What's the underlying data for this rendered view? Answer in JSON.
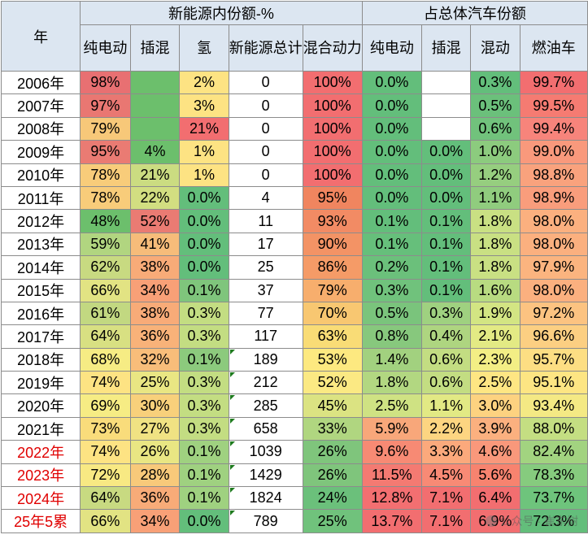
{
  "header": {
    "year": "年",
    "group_nev": "新能源内份额-%",
    "group_total": "占总体汽车份额",
    "cols": [
      "纯电动",
      "插混",
      "氢",
      "新能源总计",
      "混合动力",
      "纯电动",
      "插混",
      "混动",
      "燃油车"
    ]
  },
  "rows": [
    {
      "year": "2006年",
      "cells": [
        "98%",
        "",
        "2%",
        "0",
        "100%",
        "0.0%",
        "",
        "0.3%",
        "99.7%"
      ]
    },
    {
      "year": "2007年",
      "cells": [
        "97%",
        "",
        "3%",
        "0",
        "100%",
        "0.0%",
        "",
        "0.5%",
        "99.5%"
      ]
    },
    {
      "year": "2008年",
      "cells": [
        "79%",
        "",
        "21%",
        "0",
        "100%",
        "0.0%",
        "",
        "0.6%",
        "99.4%"
      ]
    },
    {
      "year": "2009年",
      "cells": [
        "95%",
        "4%",
        "1%",
        "0",
        "100%",
        "0.0%",
        "0.0%",
        "1.0%",
        "99.0%"
      ]
    },
    {
      "year": "2010年",
      "cells": [
        "78%",
        "21%",
        "1%",
        "0",
        "100%",
        "0.0%",
        "0.0%",
        "1.2%",
        "98.8%"
      ]
    },
    {
      "year": "2011年",
      "cells": [
        "78%",
        "22%",
        "0.0%",
        "4",
        "95%",
        "0.0%",
        "0.0%",
        "1.1%",
        "98.9%"
      ]
    },
    {
      "year": "2012年",
      "cells": [
        "48%",
        "52%",
        "0.0%",
        "11",
        "93%",
        "0.1%",
        "0.1%",
        "1.8%",
        "98.0%"
      ]
    },
    {
      "year": "2013年",
      "cells": [
        "59%",
        "41%",
        "0.0%",
        "17",
        "90%",
        "0.1%",
        "0.1%",
        "1.8%",
        "98.0%"
      ]
    },
    {
      "year": "2014年",
      "cells": [
        "62%",
        "38%",
        "0.0%",
        "25",
        "86%",
        "0.2%",
        "0.1%",
        "1.8%",
        "97.9%"
      ]
    },
    {
      "year": "2015年",
      "cells": [
        "66%",
        "34%",
        "0.1%",
        "37",
        "79%",
        "0.3%",
        "0.1%",
        "1.6%",
        "98.0%"
      ]
    },
    {
      "year": "2016年",
      "cells": [
        "61%",
        "38%",
        "0.3%",
        "77",
        "70%",
        "0.5%",
        "0.3%",
        "1.9%",
        "97.2%"
      ]
    },
    {
      "year": "2017年",
      "cells": [
        "64%",
        "36%",
        "0.3%",
        "117",
        "63%",
        "0.8%",
        "0.4%",
        "2.1%",
        "96.6%"
      ]
    },
    {
      "year": "2018年",
      "cells": [
        "68%",
        "32%",
        "0.1%",
        "189",
        "53%",
        "1.4%",
        "0.6%",
        "2.3%",
        "95.7%"
      ]
    },
    {
      "year": "2019年",
      "cells": [
        "74%",
        "25%",
        "0.3%",
        "212",
        "52%",
        "1.8%",
        "0.6%",
        "2.5%",
        "95.1%"
      ]
    },
    {
      "year": "2020年",
      "cells": [
        "69%",
        "30%",
        "0.3%",
        "285",
        "45%",
        "2.5%",
        "1.1%",
        "3.0%",
        "93.4%"
      ]
    },
    {
      "year": "2021年",
      "cells": [
        "73%",
        "27%",
        "0.3%",
        "658",
        "33%",
        "5.9%",
        "2.2%",
        "3.9%",
        "88.0%"
      ]
    },
    {
      "year": "2022年",
      "cells": [
        "74%",
        "26%",
        "0.1%",
        "1039",
        "26%",
        "9.6%",
        "3.3%",
        "4.6%",
        "82.4%"
      ],
      "red": true
    },
    {
      "year": "2023年",
      "cells": [
        "72%",
        "28%",
        "0.1%",
        "1429",
        "26%",
        "11.5%",
        "4.5%",
        "5.6%",
        "78.3%"
      ],
      "red": true
    },
    {
      "year": "2024年",
      "cells": [
        "64%",
        "36%",
        "0.1%",
        "1824",
        "24%",
        "12.8%",
        "7.1%",
        "6.4%",
        "73.7%"
      ],
      "red": true
    },
    {
      "year": "25年5累",
      "cells": [
        "66%",
        "34%",
        "0.0%",
        "789",
        "25%",
        "13.7%",
        "7.1%",
        "6.9%",
        "72.3%"
      ],
      "red": true
    }
  ],
  "colors": [
    [
      "#e87072",
      "#6cbf6c",
      "#fde383",
      "#ffffff",
      "#f26e70",
      "#63be7b",
      "#ffffff",
      "#63be7b",
      "#f26e70"
    ],
    [
      "#e97772",
      "#6cbf6c",
      "#fde383",
      "#ffffff",
      "#f26e70",
      "#63be7b",
      "#ffffff",
      "#6bc07b",
      "#f57b72"
    ],
    [
      "#f7c879",
      "#6cbf6c",
      "#f26e70",
      "#ffffff",
      "#f26e70",
      "#63be7b",
      "#ffffff",
      "#71c27c",
      "#f7847b"
    ],
    [
      "#ea7b73",
      "#6cbf6c",
      "#fde383",
      "#ffffff",
      "#f26e70",
      "#63be7b",
      "#63be7b",
      "#8ccb7e",
      "#f9997c"
    ],
    [
      "#f8cc7a",
      "#cbdc81",
      "#fde383",
      "#ffffff",
      "#f26e70",
      "#63be7b",
      "#63be7b",
      "#96ce7f",
      "#f9a27d"
    ],
    [
      "#f8cc7a",
      "#d2de81",
      "#63be7b",
      "#ffffff",
      "#f0855f",
      "#63be7b",
      "#63be7b",
      "#90cc7e",
      "#f99d7c"
    ],
    [
      "#6cbf6c",
      "#ea7b73",
      "#63be7b",
      "#ffffff",
      "#f28b64",
      "#63be7b",
      "#63be7b",
      "#c9e083",
      "#fbb07f"
    ],
    [
      "#b1d580",
      "#f6bc7a",
      "#63be7b",
      "#ffffff",
      "#f39365",
      "#66bf7b",
      "#63be7b",
      "#c9e083",
      "#fbb07f"
    ],
    [
      "#c8da81",
      "#f8ab78",
      "#63be7b",
      "#ffffff",
      "#f59b67",
      "#6bc07b",
      "#63be7b",
      "#c9e083",
      "#fbb47f"
    ],
    [
      "#e2e383",
      "#f8a077",
      "#7fc57c",
      "#ffffff",
      "#f7ae6d",
      "#70c27c",
      "#63be7b",
      "#b8db81",
      "#fbb07f"
    ],
    [
      "#c2d881",
      "#f8ab78",
      "#c3dd82",
      "#ffffff",
      "#f8c771",
      "#7ac47c",
      "#9fd180",
      "#d3e583",
      "#fcc381"
    ],
    [
      "#d8e082",
      "#f8b279",
      "#c3dd82",
      "#ffffff",
      "#f9dc76",
      "#87c87d",
      "#aed580",
      "#e3ea84",
      "#fccf82"
    ],
    [
      "#f6ec84",
      "#f8bd7a",
      "#8cca7d",
      "#ffffff",
      "#fde980",
      "#a2d17f",
      "#c3dd82",
      "#f3ee85",
      "#fdde83"
    ],
    [
      "#fde383",
      "#e9e683",
      "#c3dd82",
      "#ffffff",
      "#fbe983",
      "#b2d781",
      "#c3dd82",
      "#fee683",
      "#fde583"
    ],
    [
      "#f6ec84",
      "#f8d07b",
      "#c3dd82",
      "#ffffff",
      "#dbe382",
      "#cfe283",
      "#e2e984",
      "#fdd280",
      "#f4e984"
    ],
    [
      "#f9dc7b",
      "#f0e283",
      "#c3dd82",
      "#ffffff",
      "#b0d680",
      "#f8a77a",
      "#fdd581",
      "#fbb07f",
      "#c4de82"
    ],
    [
      "#fde383",
      "#e9e683",
      "#9fd180",
      "#ffffff",
      "#7fc57c",
      "#f78a74",
      "#fba97c",
      "#f9987b",
      "#a2d380"
    ],
    [
      "#f8e983",
      "#f8c97a",
      "#9fd180",
      "#ffffff",
      "#7fc57c",
      "#f47a72",
      "#f88a75",
      "#f7836f",
      "#86cb7e"
    ],
    [
      "#c8da81",
      "#f8ab78",
      "#9fd180",
      "#ffffff",
      "#6bc07b",
      "#f36f71",
      "#f26e70",
      "#f26e70",
      "#6ec47c"
    ],
    [
      "#e2e383",
      "#f8a077",
      "#63be7b",
      "#ffffff",
      "#70c27c",
      "#f26e70",
      "#f26e70",
      "#f26e70",
      "#63be7b"
    ]
  ],
  "flag_rows_from": 12,
  "watermark": "公众号 · 崔东树"
}
